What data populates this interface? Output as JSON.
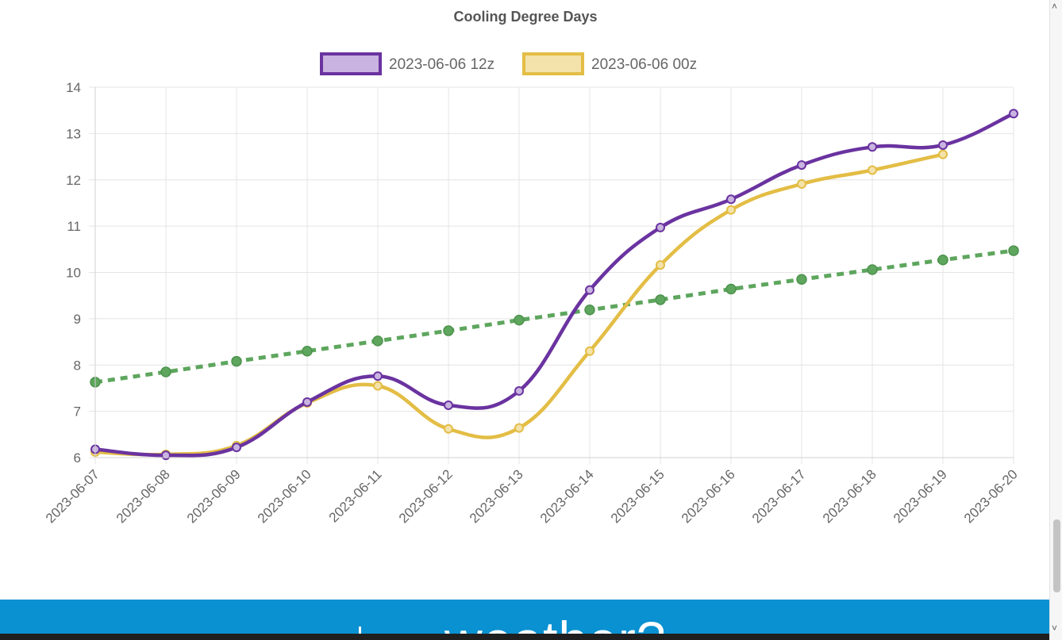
{
  "chart_data": {
    "type": "line",
    "title": "Cooling Degree Days",
    "xlabel": "",
    "ylabel": "",
    "ylim": [
      6,
      14
    ],
    "yticks": [
      6,
      7,
      8,
      9,
      10,
      11,
      12,
      13,
      14
    ],
    "legend_position": "top",
    "grid": true,
    "categories": [
      "2023-06-07",
      "2023-06-08",
      "2023-06-09",
      "2023-06-10",
      "2023-06-11",
      "2023-06-12",
      "2023-06-13",
      "2023-06-14",
      "2023-06-15",
      "2023-06-16",
      "2023-06-17",
      "2023-06-18",
      "2023-06-19",
      "2023-06-20"
    ],
    "series": [
      {
        "name": "2023-06-06 12z",
        "color": "#6a33a0",
        "fill": "#c9b3e0",
        "style": "solid",
        "values": [
          6.18,
          6.05,
          6.22,
          7.2,
          7.76,
          7.13,
          7.44,
          9.62,
          10.97,
          11.58,
          12.32,
          12.71,
          12.75,
          13.43
        ]
      },
      {
        "name": "2023-06-06 00z",
        "color": "#e3bd45",
        "fill": "#f3e2aa",
        "style": "solid",
        "values": [
          6.12,
          6.07,
          6.26,
          7.18,
          7.55,
          6.62,
          6.64,
          8.3,
          10.16,
          11.35,
          11.91,
          12.21,
          12.55,
          null
        ]
      },
      {
        "color": "#5ea65e",
        "style": "dotted",
        "values": [
          7.63,
          7.85,
          8.08,
          8.3,
          8.52,
          8.74,
          8.97,
          9.19,
          9.41,
          9.64,
          9.85,
          10.06,
          10.27,
          10.47
        ]
      }
    ]
  },
  "banner": {
    "text": "weather?",
    "color": "#0a91d1"
  }
}
